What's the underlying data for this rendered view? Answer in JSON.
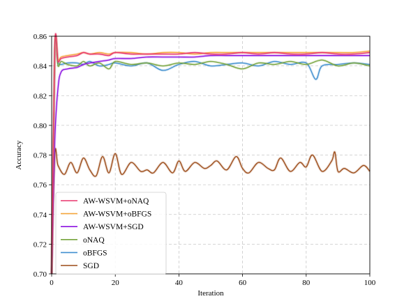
{
  "chart_data": {
    "type": "line",
    "xlabel": "Iteration",
    "ylabel": "Accuracy",
    "xlim": [
      0,
      100
    ],
    "ylim": [
      0.7,
      0.86
    ],
    "xticks": [
      "0",
      "20",
      "40",
      "60",
      "80",
      "100"
    ],
    "yticks": [
      "0.70",
      "0.72",
      "0.74",
      "0.76",
      "0.78",
      "0.80",
      "0.82",
      "0.84",
      "0.86"
    ],
    "grid": true,
    "legend_position": "lower-left",
    "series": [
      {
        "name": "AW-WSVM+oNAQ",
        "color": "#e8336c",
        "x": [
          0,
          1,
          2,
          3,
          5,
          8,
          10,
          12,
          15,
          18,
          20,
          25,
          30,
          35,
          40,
          45,
          50,
          55,
          60,
          65,
          70,
          75,
          80,
          85,
          90,
          95,
          100
        ],
        "values": [
          0.7,
          0.853,
          0.843,
          0.845,
          0.846,
          0.847,
          0.849,
          0.848,
          0.848,
          0.847,
          0.849,
          0.848,
          0.848,
          0.848,
          0.848,
          0.849,
          0.848,
          0.848,
          0.849,
          0.848,
          0.849,
          0.848,
          0.848,
          0.849,
          0.848,
          0.848,
          0.849
        ]
      },
      {
        "name": "AW-WSVM+oBFGS",
        "color": "#f5a63b",
        "x": [
          0,
          1,
          2,
          3,
          5,
          8,
          10,
          12,
          15,
          18,
          20,
          25,
          30,
          35,
          40,
          45,
          50,
          55,
          60,
          65,
          70,
          75,
          80,
          85,
          90,
          95,
          100
        ],
        "values": [
          0.7,
          0.852,
          0.844,
          0.846,
          0.847,
          0.848,
          0.849,
          0.848,
          0.849,
          0.848,
          0.849,
          0.849,
          0.848,
          0.849,
          0.849,
          0.848,
          0.849,
          0.849,
          0.849,
          0.849,
          0.849,
          0.849,
          0.849,
          0.849,
          0.849,
          0.849,
          0.85
        ]
      },
      {
        "name": "AW-WSVM+SGD",
        "color": "#8b11e0",
        "x": [
          0,
          1,
          2,
          3,
          5,
          8,
          10,
          12,
          15,
          18,
          20,
          25,
          30,
          35,
          40,
          45,
          50,
          55,
          60,
          65,
          70,
          75,
          80,
          85,
          90,
          95,
          100
        ],
        "values": [
          0.7,
          0.79,
          0.825,
          0.836,
          0.838,
          0.839,
          0.841,
          0.842,
          0.843,
          0.844,
          0.845,
          0.845,
          0.846,
          0.846,
          0.846,
          0.846,
          0.847,
          0.847,
          0.847,
          0.847,
          0.847,
          0.847,
          0.847,
          0.847,
          0.847,
          0.847,
          0.847
        ]
      },
      {
        "name": "oNAQ",
        "color": "#76a33c",
        "x": [
          0,
          1,
          2,
          3,
          5,
          8,
          10,
          12,
          15,
          18,
          20,
          25,
          30,
          35,
          40,
          45,
          50,
          55,
          60,
          65,
          70,
          75,
          80,
          85,
          90,
          95,
          100
        ],
        "values": [
          0.7,
          0.852,
          0.84,
          0.843,
          0.841,
          0.84,
          0.843,
          0.84,
          0.842,
          0.838,
          0.843,
          0.841,
          0.842,
          0.84,
          0.842,
          0.841,
          0.843,
          0.841,
          0.838,
          0.842,
          0.841,
          0.843,
          0.841,
          0.844,
          0.84,
          0.842,
          0.84
        ]
      },
      {
        "name": "oBFGS",
        "color": "#3f8fcf",
        "x": [
          0,
          1,
          2,
          3,
          5,
          8,
          10,
          12,
          15,
          18,
          20,
          25,
          30,
          35,
          40,
          45,
          50,
          55,
          60,
          65,
          70,
          75,
          80,
          83,
          85,
          90,
          95,
          100
        ],
        "values": [
          0.7,
          0.85,
          0.842,
          0.841,
          0.842,
          0.842,
          0.841,
          0.843,
          0.84,
          0.841,
          0.842,
          0.84,
          0.842,
          0.837,
          0.841,
          0.843,
          0.84,
          0.841,
          0.842,
          0.84,
          0.843,
          0.841,
          0.842,
          0.831,
          0.84,
          0.841,
          0.842,
          0.841
        ]
      },
      {
        "name": "SGD",
        "color": "#9b4a17",
        "x": [
          0,
          1,
          2,
          4,
          6,
          8,
          10,
          12,
          14,
          16,
          18,
          20,
          22,
          25,
          28,
          30,
          32,
          35,
          38,
          40,
          42,
          45,
          48,
          50,
          52,
          55,
          58,
          60,
          62,
          65,
          68,
          70,
          72,
          75,
          78,
          80,
          82,
          85,
          88,
          89,
          90,
          92,
          95,
          98,
          100
        ],
        "values": [
          0.7,
          0.78,
          0.773,
          0.767,
          0.775,
          0.768,
          0.778,
          0.77,
          0.766,
          0.779,
          0.768,
          0.781,
          0.767,
          0.775,
          0.769,
          0.77,
          0.768,
          0.775,
          0.768,
          0.776,
          0.769,
          0.775,
          0.771,
          0.773,
          0.776,
          0.77,
          0.779,
          0.771,
          0.768,
          0.775,
          0.771,
          0.77,
          0.778,
          0.769,
          0.775,
          0.772,
          0.78,
          0.769,
          0.776,
          0.782,
          0.769,
          0.771,
          0.768,
          0.773,
          0.769
        ]
      }
    ]
  }
}
